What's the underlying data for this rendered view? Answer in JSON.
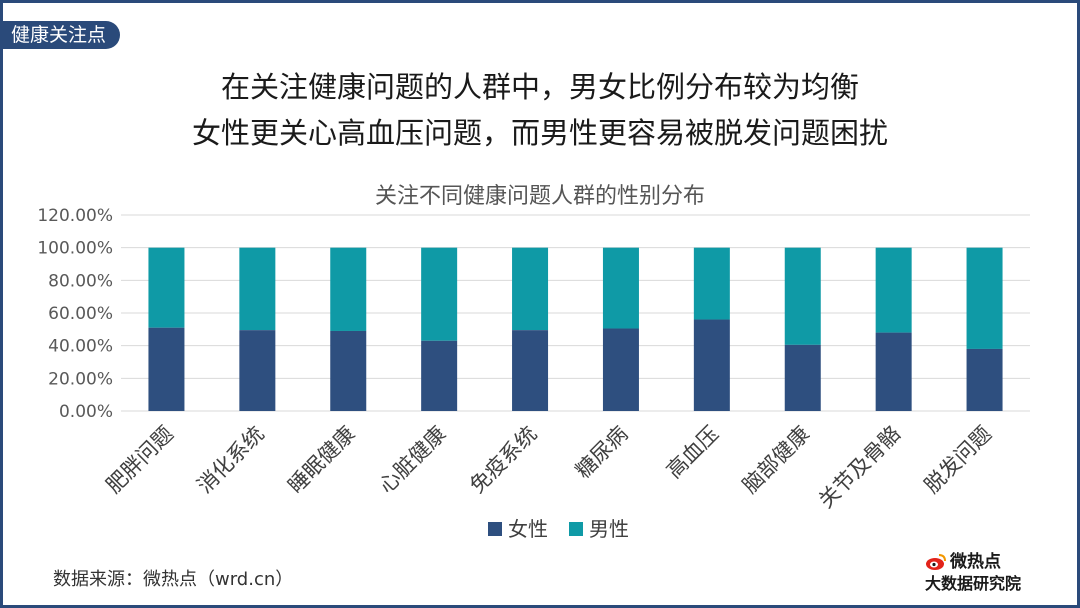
{
  "tag": "健康关注点",
  "headline": {
    "line1": "在关注健康问题的人群中，男女比例分布较为均衡",
    "line2": "女性更关心高血压问题，而男性更容易被脱发问题困扰"
  },
  "source": "数据来源：微热点（wrd.cn）",
  "brand": {
    "name": "微热点",
    "sub": "大数据研究院",
    "logo_color": "#e2231a"
  },
  "colors": {
    "female": "#2e4f7f",
    "male": "#0f9aa6",
    "frame": "#2a4a7a"
  },
  "chart_data": {
    "type": "bar",
    "stacked": true,
    "title": "关注不同健康问题人群的性别分布",
    "categories": [
      "肥胖问题",
      "消化系统",
      "睡眠健康",
      "心脏健康",
      "免疫系统",
      "糖尿病",
      "高血压",
      "脑部健康",
      "关节及骨骼",
      "脱发问题"
    ],
    "series": [
      {
        "name": "女性",
        "values": [
          51,
          49.5,
          49,
          43,
          49.5,
          50.5,
          56,
          40.5,
          48,
          38
        ]
      },
      {
        "name": "男性",
        "values": [
          49,
          50.5,
          51,
          57,
          50.5,
          49.5,
          44,
          59.5,
          52,
          62
        ]
      }
    ],
    "ylim": [
      0,
      120
    ],
    "yticks": [
      "0.00%",
      "20.00%",
      "40.00%",
      "60.00%",
      "80.00%",
      "100.00%",
      "120.00%"
    ],
    "grid": true,
    "legend": "bottom"
  }
}
